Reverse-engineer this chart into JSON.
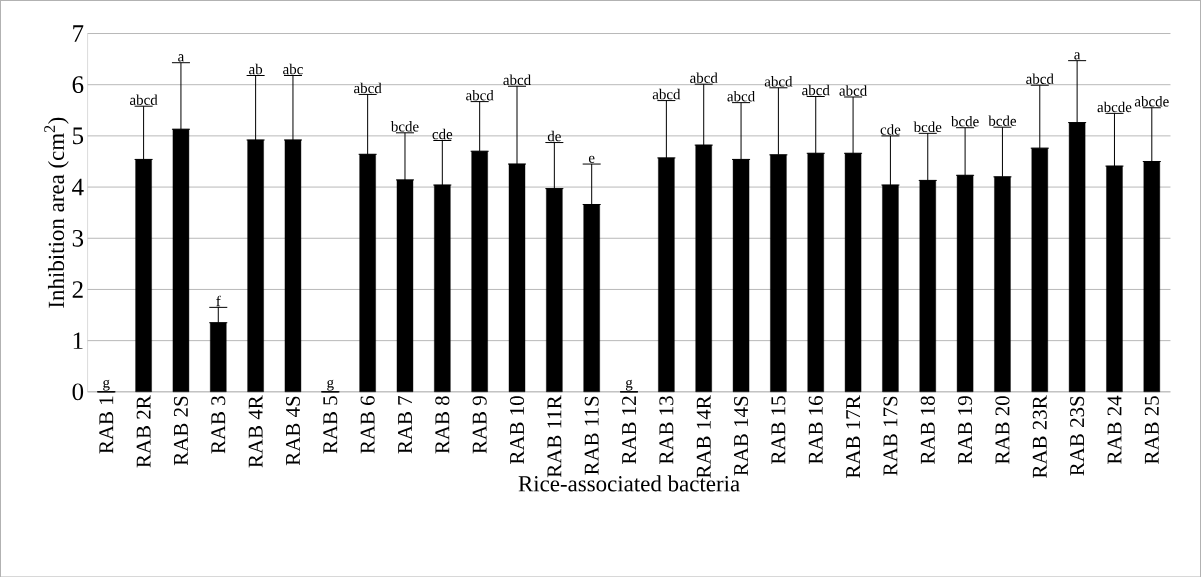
{
  "chart_data": {
    "type": "bar",
    "xlabel": "Rice-associated bacteria",
    "ylabel": "Inhibition area (cm$^{2}$)",
    "categories": [
      "RAB 1",
      "RAB 2R",
      "RAB 2S",
      "RAB 3",
      "RAB 4R",
      "RAB 4S",
      "RAB 5",
      "RAB 6",
      "RAB 7",
      "RAB 8",
      "RAB 9",
      "RAB 10",
      "RAB 11R",
      "RAB 11S",
      "RAB 12",
      "RAB 13",
      "RAB 14R",
      "RAB 14S",
      "RAB 15",
      "RAB 16",
      "RAB 17R",
      "RAB 17S",
      "RAB 18",
      "RAB 19",
      "RAB 20",
      "RAB 23R",
      "RAB 23S",
      "RAB 24",
      "RAB 25"
    ],
    "values": [
      0,
      4.54,
      5.13,
      1.35,
      4.92,
      4.92,
      0,
      4.64,
      4.14,
      4.04,
      4.7,
      4.45,
      3.97,
      3.66,
      0,
      4.57,
      4.82,
      4.54,
      4.63,
      4.66,
      4.66,
      4.04,
      4.13,
      4.23,
      4.2,
      4.76,
      5.26,
      4.41,
      4.5
    ],
    "errors": [
      null,
      [
        4.54,
        5.58
      ],
      [
        5.13,
        6.43
      ],
      [
        1.35,
        1.65
      ],
      [
        4.92,
        6.18
      ],
      [
        4.92,
        6.18
      ],
      null,
      [
        4.64,
        5.81
      ],
      [
        4.14,
        5.06
      ],
      [
        4.04,
        4.91
      ],
      [
        4.7,
        5.67
      ],
      [
        4.45,
        5.97
      ],
      [
        3.97,
        4.87
      ],
      [
        3.66,
        4.45
      ],
      null,
      [
        4.57,
        5.69
      ],
      [
        4.82,
        6.01
      ],
      [
        4.54,
        5.65
      ],
      [
        4.63,
        5.94
      ],
      [
        4.66,
        5.77
      ],
      [
        4.66,
        5.76
      ],
      [
        4.04,
        5.0
      ],
      [
        4.13,
        5.05
      ],
      [
        4.23,
        5.16
      ],
      [
        4.2,
        5.17
      ],
      [
        4.76,
        5.99
      ],
      [
        5.26,
        6.47
      ],
      [
        4.41,
        5.44
      ],
      [
        4.5,
        5.55
      ]
    ],
    "color": "#000000",
    "ylim": [
      0,
      7
    ],
    "yticks": [
      0,
      1,
      2,
      3,
      4,
      5,
      6,
      7
    ],
    "grid": "y",
    "annotations": [
      {
        "text": "g",
        "x": "RAB 1",
        "y": 0
      },
      {
        "text": "abcd",
        "x": "RAB 2R",
        "y": 5.58
      },
      {
        "text": "a",
        "x": "RAB 2S",
        "y": 6.43
      },
      {
        "text": "f",
        "x": "RAB 3",
        "y": 1.65
      },
      {
        "text": "ab",
        "x": "RAB 4R",
        "y": 6.18
      },
      {
        "text": "abc",
        "x": "RAB 4S",
        "y": 6.18
      },
      {
        "text": "g",
        "x": "RAB 5",
        "y": 0
      },
      {
        "text": "abcd",
        "x": "RAB 6",
        "y": 5.81
      },
      {
        "text": "bcde",
        "x": "RAB 7",
        "y": 5.06
      },
      {
        "text": "cde",
        "x": "RAB 8",
        "y": 4.91
      },
      {
        "text": "abcd",
        "x": "RAB 9",
        "y": 5.67
      },
      {
        "text": "abcd",
        "x": "RAB 10",
        "y": 5.97
      },
      {
        "text": "de",
        "x": "RAB 11R",
        "y": 4.87
      },
      {
        "text": "e",
        "x": "RAB 11S",
        "y": 4.45
      },
      {
        "text": "g",
        "x": "RAB 12",
        "y": 0
      },
      {
        "text": "abcd",
        "x": "RAB 13",
        "y": 5.69
      },
      {
        "text": "abcd",
        "x": "RAB 14R",
        "y": 6.01
      },
      {
        "text": "abcd",
        "x": "RAB 14S",
        "y": 5.65
      },
      {
        "text": "abcd",
        "x": "RAB 15",
        "y": 5.94
      },
      {
        "text": "abcd",
        "x": "RAB 16",
        "y": 5.77
      },
      {
        "text": "abcd",
        "x": "RAB 17R",
        "y": 5.76
      },
      {
        "text": "cde",
        "x": "RAB 17S",
        "y": 5.0
      },
      {
        "text": "bcde",
        "x": "RAB 18",
        "y": 5.05
      },
      {
        "text": "bcde",
        "x": "RAB 19",
        "y": 5.16
      },
      {
        "text": "bcde",
        "x": "RAB 20",
        "y": 5.17
      },
      {
        "text": "abcd",
        "x": "RAB 23R",
        "y": 5.99
      },
      {
        "text": "a",
        "x": "RAB 23S",
        "y": 6.47
      },
      {
        "text": "abcde",
        "x": "RAB 24",
        "y": 5.44
      },
      {
        "text": "abcde",
        "x": "RAB 25",
        "y": 5.55
      }
    ]
  }
}
